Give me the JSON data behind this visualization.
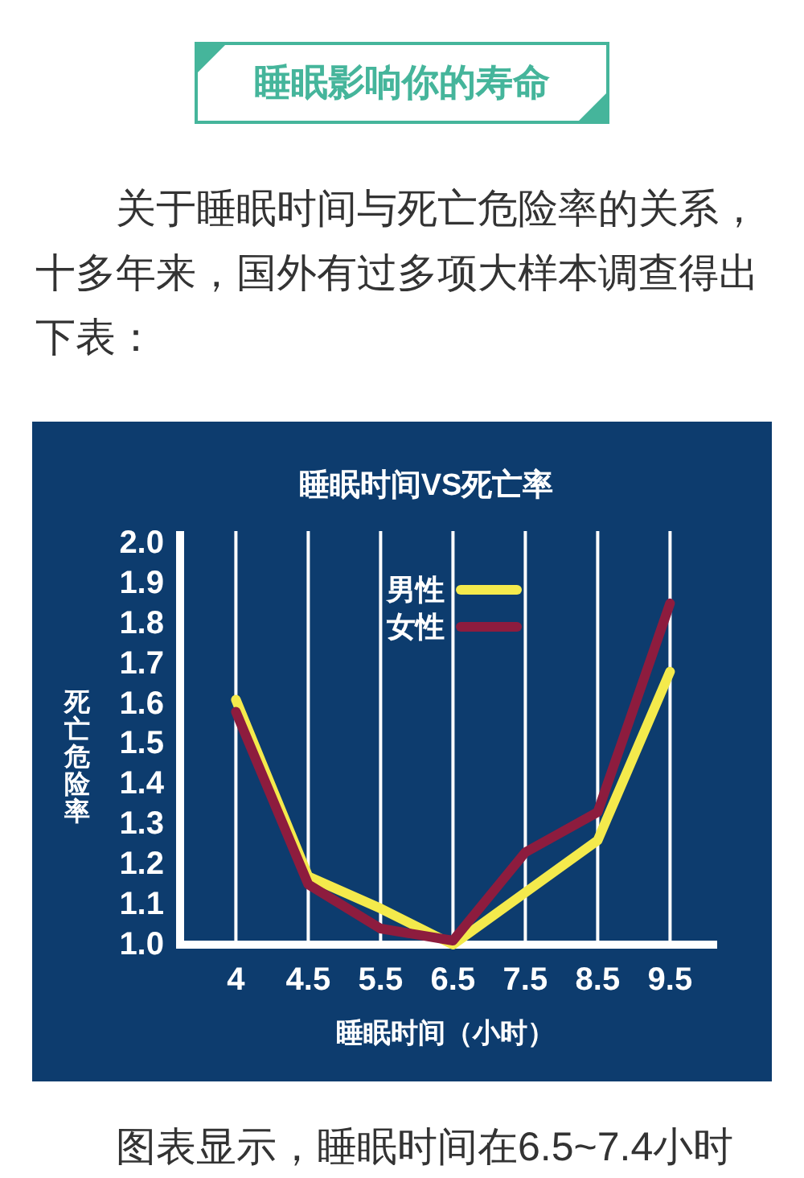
{
  "chart_data": {
    "type": "line",
    "title": "睡眠时间VS死亡率",
    "xlabel": "睡眠时间（小时）",
    "ylabel": "死亡危险率",
    "categories": [
      "4",
      "4.5",
      "5.5",
      "6.5",
      "7.5",
      "8.5",
      "9.5"
    ],
    "series": [
      {
        "name": "男性",
        "color": "#f4ea4c",
        "values": [
          1.61,
          1.17,
          1.09,
          1.0,
          1.13,
          1.26,
          1.68
        ]
      },
      {
        "name": "女性",
        "color": "#8d1c3e",
        "values": [
          1.58,
          1.15,
          1.04,
          1.01,
          1.23,
          1.33,
          1.85
        ]
      }
    ],
    "ylim": [
      1,
      2.03
    ],
    "yticks": [
      {
        "value": 1,
        "label": "1.0"
      },
      1.1,
      1.2,
      1.3,
      1.4,
      1.5,
      1.6,
      1.7,
      1.8,
      1.9,
      {
        "value": 2,
        "label": "2.0"
      }
    ],
    "grid": "x",
    "legend": "top",
    "marker": "none",
    "line_style": "solid",
    "annotations": [
      "睡眠影响你的寿命",
      "关于睡眠时间与死亡危险率的关系，十多年来，国外有过多项大样本调查得出下表：",
      "图表显示，睡眠时间在6.5~7.4小时"
    ]
  }
}
